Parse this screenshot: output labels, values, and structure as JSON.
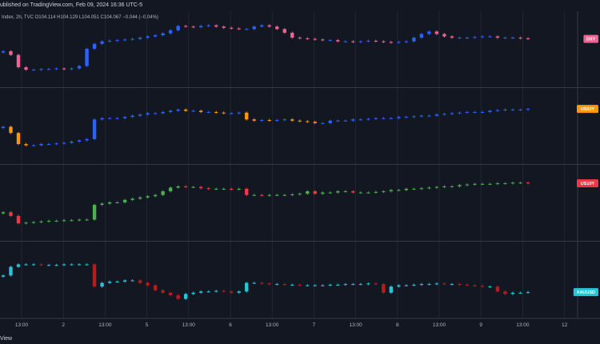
{
  "header": {
    "published": "ublished on TradingView.com, Feb 09, 2024 16:36 UTC-5"
  },
  "footer": {
    "brand": "View"
  },
  "colors": {
    "background": "#131722",
    "grid": "#2a2e39",
    "dxy_up": "#2962ff",
    "dxy_down": "#f06292",
    "us02y_up": "#2962ff",
    "us02y_down": "#ff9800",
    "us10y_up": "#4caf50",
    "us10y_down": "#f23645",
    "xauusd_up": "#26c6da",
    "xauusd_down": "#b71c1c"
  },
  "chart_data": {
    "type": "candlestick",
    "x_tick_labels": [
      "13:00",
      "2",
      "13:00",
      "5",
      "13:00",
      "6",
      "13:00",
      "7",
      "13:00",
      "8",
      "13:00",
      "9",
      "13:00",
      "12"
    ],
    "panes": [
      {
        "symbol": "DXY",
        "legend": "Index, 2h, TVC  O104.114  H104.129  L104.051  C104.067  −0.044 (−0.04%)",
        "tag": "DXY",
        "tag_color": "#f06292",
        "up_color": "#2962ff",
        "down_color": "#f06292",
        "closes": [
          48,
          42,
          22,
          18,
          18,
          19,
          19,
          20,
          19,
          20,
          24,
          52,
          60,
          64,
          65,
          66,
          67,
          68,
          70,
          72,
          74,
          77,
          82,
          89,
          88,
          87,
          89,
          90,
          88,
          86,
          85,
          84,
          84,
          88,
          90,
          88,
          84,
          78,
          70,
          69,
          68,
          67,
          66,
          66,
          64,
          64,
          63,
          64,
          65,
          64,
          63,
          62,
          63,
          64,
          70,
          76,
          80,
          76,
          72,
          70,
          70,
          70,
          71,
          72,
          72,
          70,
          70,
          70,
          69,
          68
        ]
      },
      {
        "symbol": "US02Y",
        "legend": "",
        "tag": "US02Y",
        "tag_color": "#ff9800",
        "up_color": "#2962ff",
        "down_color": "#ff9800",
        "closes": [
          50,
          40,
          22,
          20,
          20,
          22,
          22,
          23,
          24,
          26,
          28,
          30,
          62,
          64,
          64,
          64,
          66,
          68,
          70,
          72,
          72,
          74,
          76,
          78,
          76,
          76,
          74,
          74,
          73,
          72,
          72,
          73,
          62,
          60,
          61,
          60,
          61,
          62,
          60,
          59,
          58,
          56,
          56,
          60,
          60,
          60,
          62,
          62,
          63,
          64,
          64,
          64,
          66,
          66,
          67,
          68,
          68,
          70,
          71,
          72,
          73,
          74,
          74,
          74,
          76,
          77,
          78,
          78,
          78,
          79
        ]
      },
      {
        "symbol": "US10Y",
        "legend": "",
        "tag": "US10Y",
        "tag_color": "#f23645",
        "up_color": "#4caf50",
        "down_color": "#f23645",
        "closes": [
          36,
          30,
          18,
          19,
          20,
          21,
          22,
          22,
          23,
          23,
          24,
          24,
          48,
          50,
          52,
          52,
          56,
          58,
          60,
          62,
          64,
          70,
          76,
          78,
          77,
          77,
          75,
          74,
          74,
          74,
          73,
          74,
          64,
          64,
          63,
          64,
          64,
          64,
          65,
          66,
          70,
          66,
          68,
          68,
          70,
          70,
          68,
          68,
          68,
          69,
          70,
          72,
          72,
          74,
          74,
          75,
          76,
          77,
          78,
          78,
          80,
          81,
          82,
          82,
          82,
          83,
          83,
          84,
          84,
          83
        ]
      },
      {
        "symbol": "XAUUSD",
        "legend": "",
        "tag": "XAUUSD",
        "tag_color": "#26c6da",
        "up_color": "#26c6da",
        "down_color": "#b71c1c",
        "closes": [
          58,
          72,
          76,
          76,
          76,
          75,
          75,
          75,
          76,
          76,
          76,
          76,
          40,
          46,
          48,
          48,
          50,
          50,
          46,
          42,
          34,
          30,
          26,
          20,
          28,
          30,
          32,
          32,
          33,
          32,
          30,
          32,
          46,
          46,
          45,
          44,
          44,
          43,
          43,
          42,
          42,
          42,
          42,
          43,
          43,
          44,
          44,
          44,
          45,
          44,
          30,
          40,
          42,
          42,
          43,
          44,
          44,
          45,
          44,
          44,
          43,
          42,
          41,
          40,
          40,
          32,
          28,
          30,
          30,
          31
        ]
      }
    ]
  }
}
